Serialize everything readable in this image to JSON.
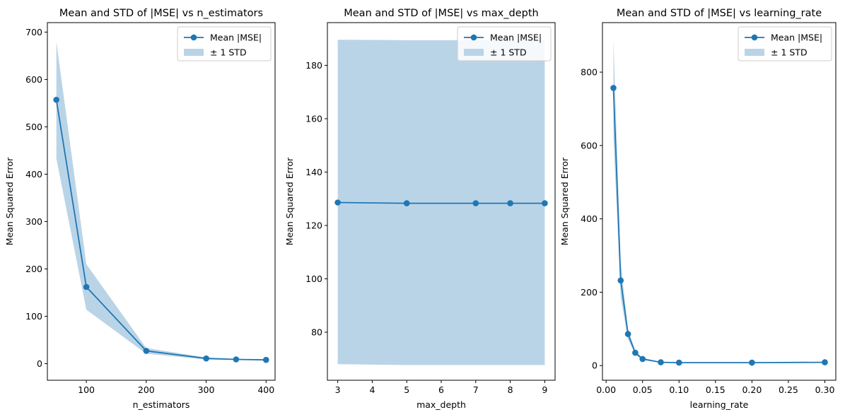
{
  "colors": {
    "line": "#1f77b4",
    "band": "#bad4e7",
    "axis": "#000000"
  },
  "chart_data": [
    {
      "type": "line",
      "title": "Mean and STD of |MSE| vs n_estimators",
      "xlabel": "n_estimators",
      "ylabel": "Mean Squared Error",
      "xlim": [
        35,
        415
      ],
      "ylim": [
        -35,
        720
      ],
      "xticks": [
        100,
        200,
        300,
        400
      ],
      "yticks": [
        0,
        100,
        200,
        300,
        400,
        500,
        600,
        700
      ],
      "xtick_labels": [
        "100",
        "200",
        "300",
        "400"
      ],
      "ytick_labels": [
        "0",
        "100",
        "200",
        "300",
        "400",
        "500",
        "600",
        "700"
      ],
      "legend": {
        "position": "top-right",
        "entries": [
          "Mean |MSE|",
          "± 1 STD"
        ]
      },
      "series": [
        {
          "name": "Mean |MSE|",
          "x": [
            50,
            100,
            200,
            300,
            350,
            400
          ],
          "y": [
            557,
            162,
            27,
            11,
            9,
            8
          ],
          "std_upper": [
            680,
            210,
            33,
            13,
            10,
            9
          ],
          "std_lower": [
            433,
            114,
            21,
            9,
            8,
            7
          ]
        }
      ]
    },
    {
      "type": "line",
      "title": "Mean and STD of |MSE| vs max_depth",
      "xlabel": "max_depth",
      "ylabel": "Mean Squared Error",
      "xlim": [
        2.7,
        9.3
      ],
      "ylim": [
        62,
        196
      ],
      "xticks": [
        3,
        4,
        5,
        6,
        7,
        8,
        9
      ],
      "yticks": [
        80,
        100,
        120,
        140,
        160,
        180
      ],
      "xtick_labels": [
        "3",
        "4",
        "5",
        "6",
        "7",
        "8",
        "9"
      ],
      "ytick_labels": [
        "80",
        "100",
        "120",
        "140",
        "160",
        "180"
      ],
      "legend": {
        "position": "top-right",
        "entries": [
          "Mean |MSE|",
          "± 1 STD"
        ]
      },
      "series": [
        {
          "name": "Mean |MSE|",
          "x": [
            3,
            5,
            7,
            8,
            9
          ],
          "y": [
            128.6,
            128.3,
            128.3,
            128.3,
            128.3
          ],
          "std_upper": [
            189.6,
            189.4,
            189.4,
            189.4,
            189.4
          ],
          "std_lower": [
            68.0,
            67.7,
            67.7,
            67.7,
            67.7
          ]
        }
      ]
    },
    {
      "type": "line",
      "title": "Mean and STD of |MSE| vs learning_rate",
      "xlabel": "learning_rate",
      "ylabel": "Mean Squared Error",
      "xlim": [
        -0.005,
        0.315
      ],
      "ylim": [
        -40,
        935
      ],
      "xticks": [
        0.0,
        0.05,
        0.1,
        0.15,
        0.2,
        0.25,
        0.3
      ],
      "yticks": [
        0,
        200,
        400,
        600,
        800
      ],
      "xtick_labels": [
        "0.00",
        "0.05",
        "0.10",
        "0.15",
        "0.20",
        "0.25",
        "0.30"
      ],
      "ytick_labels": [
        "0",
        "200",
        "400",
        "600",
        "800"
      ],
      "legend": {
        "position": "top-right",
        "entries": [
          "Mean |MSE|",
          "± 1 STD"
        ]
      },
      "series": [
        {
          "name": "Mean |MSE|",
          "x": [
            0.01,
            0.02,
            0.03,
            0.04,
            0.05,
            0.075,
            0.1,
            0.2,
            0.3
          ],
          "y": [
            757,
            232,
            86,
            35,
            18,
            9,
            8,
            8,
            9
          ],
          "std_upper": [
            890,
            280,
            100,
            40,
            21,
            10,
            9,
            9,
            10
          ],
          "std_lower": [
            625,
            185,
            72,
            30,
            15,
            8,
            7,
            7,
            8
          ]
        }
      ]
    }
  ]
}
